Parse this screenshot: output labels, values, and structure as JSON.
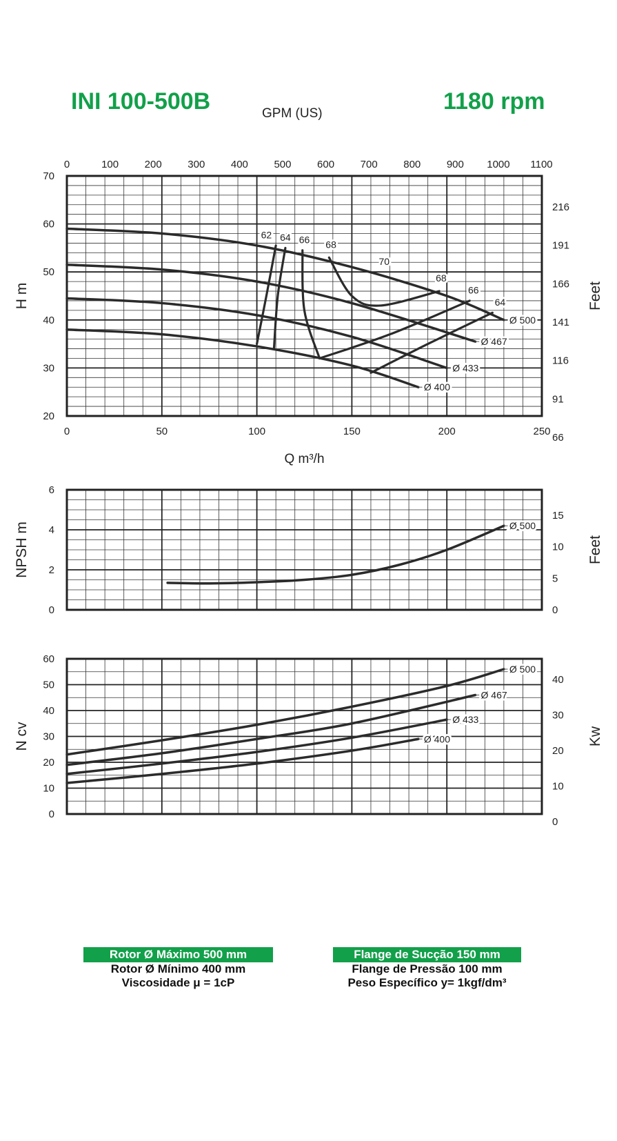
{
  "header": {
    "model": "INI 100-500B",
    "rpm": "1180 rpm",
    "gpm_label": "GPM (US)"
  },
  "colors": {
    "brand_green": "#12a04a",
    "curve": "#2b2b2b"
  },
  "chart_data": [
    {
      "type": "line",
      "name": "head",
      "xlabel": "Q m³/h",
      "ylabel": "H m",
      "y2label": "Feet",
      "x2label": "GPM (US)",
      "xlim": [
        0,
        250
      ],
      "ylim": [
        20,
        70
      ],
      "x_ticks": [
        0,
        50,
        100,
        150,
        200,
        250
      ],
      "y_ticks": [
        20,
        30,
        40,
        50,
        60,
        70
      ],
      "x2_ticks": [
        "0",
        "100",
        "200",
        "300",
        "400",
        "500",
        "600",
        "700",
        "800",
        "900",
        "1000",
        "1100"
      ],
      "y2_ticks": [
        "216",
        "191",
        "166",
        "141",
        "116",
        "91",
        "66"
      ],
      "grid": true,
      "series": [
        {
          "name": "Ø 500",
          "x": [
            0,
            50,
            100,
            150,
            200,
            230
          ],
          "y": [
            59,
            58,
            55.5,
            51,
            45,
            40
          ]
        },
        {
          "name": "Ø 467",
          "x": [
            0,
            50,
            100,
            150,
            215
          ],
          "y": [
            51.5,
            50.5,
            48,
            43.5,
            35.5
          ]
        },
        {
          "name": "Ø 433",
          "x": [
            0,
            50,
            100,
            150,
            200
          ],
          "y": [
            44.5,
            43.5,
            41,
            36.5,
            30
          ]
        },
        {
          "name": "Ø 400",
          "x": [
            0,
            50,
            100,
            150,
            185
          ],
          "y": [
            38,
            37,
            34.5,
            30.5,
            26
          ]
        }
      ],
      "efficiency_curves": [
        {
          "name": "62",
          "x": [
            110,
            105,
            100
          ],
          "y": [
            55.5,
            45,
            35
          ]
        },
        {
          "name": "64",
          "x": [
            115,
            111,
            109
          ],
          "y": [
            55,
            45,
            34
          ]
        },
        {
          "name": "66",
          "x": [
            124,
            125,
            133
          ],
          "y": [
            54.5,
            42,
            32
          ],
          "x2": [
            133,
            170,
            212
          ],
          "y2": [
            32,
            37,
            44
          ]
        },
        {
          "name": "68",
          "x": [
            138,
            150,
            165,
            196
          ],
          "y": [
            53,
            45,
            43,
            46
          ],
          "x3": [
            160,
            190,
            224
          ],
          "y3": [
            29,
            35,
            41.5
          ]
        }
      ],
      "efficiency_labels": [
        "62",
        "64",
        "66",
        "68",
        "70",
        "68",
        "66",
        "64"
      ]
    },
    {
      "type": "line",
      "name": "npsh",
      "ylabel": "NPSH m",
      "y2label": "Feet",
      "xlim": [
        0,
        250
      ],
      "ylim": [
        0,
        6
      ],
      "y_ticks": [
        0,
        2,
        4,
        6
      ],
      "y2_ticks": [
        "15",
        "10",
        "5",
        "0"
      ],
      "grid": true,
      "series": [
        {
          "name": "Ø 500",
          "x": [
            53,
            75,
            100,
            125,
            150,
            175,
            200,
            230
          ],
          "y": [
            1.35,
            1.32,
            1.38,
            1.5,
            1.75,
            2.25,
            3.0,
            4.2
          ]
        }
      ]
    },
    {
      "type": "line",
      "name": "power",
      "ylabel": "N cv",
      "y2label": "Kw",
      "xlim": [
        0,
        250
      ],
      "ylim": [
        0,
        60
      ],
      "y_ticks": [
        0,
        10,
        20,
        30,
        40,
        50,
        60
      ],
      "y2_ticks": [
        "40",
        "30",
        "20",
        "10",
        "0"
      ],
      "grid": true,
      "series": [
        {
          "name": "Ø 500",
          "x": [
            0,
            50,
            100,
            150,
            200,
            230
          ],
          "y": [
            23,
            28.5,
            34.5,
            41.5,
            49.5,
            56
          ]
        },
        {
          "name": "Ø 467",
          "x": [
            0,
            50,
            100,
            150,
            215
          ],
          "y": [
            19,
            23.5,
            29,
            35,
            46
          ]
        },
        {
          "name": "Ø 433",
          "x": [
            0,
            50,
            100,
            150,
            200
          ],
          "y": [
            15.5,
            19.5,
            24,
            29.5,
            36.5
          ]
        },
        {
          "name": "Ø 400",
          "x": [
            0,
            50,
            100,
            150,
            185
          ],
          "y": [
            12,
            15.5,
            19.5,
            24.5,
            29
          ]
        }
      ]
    }
  ],
  "info_left": {
    "line1": "Rotor Ø Máximo 500 mm",
    "line2": "Rotor Ø Mínimo 400 mm",
    "line3": "Viscosidade μ = 1cP"
  },
  "info_right": {
    "line1": "Flange de Sucção 150 mm",
    "line2": "Flange de Pressão 100 mm",
    "line3": "Peso Específico y= 1kgf/dm³"
  }
}
